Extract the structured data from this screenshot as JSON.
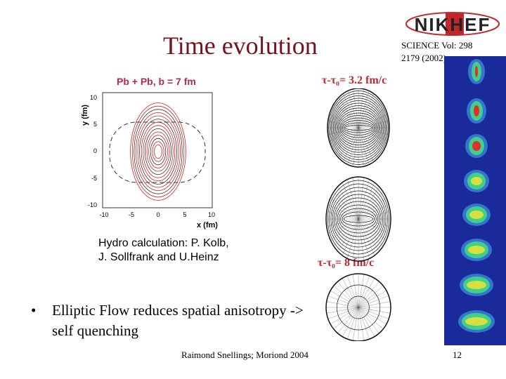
{
  "slide": {
    "title": "Time evolution",
    "reference": "SCIENCE Vol: 298 2179 (2002)",
    "logo_text": "NIKHEF",
    "plot_title": "Pb + Pb, b = 7 fm",
    "y_axis_label": "y (fm)",
    "x_axis_label": "x (fm)",
    "y_ticks": [
      "10",
      "5",
      "0",
      "-5",
      "-10"
    ],
    "x_ticks": [
      "-10",
      "-5",
      "0",
      "5",
      "10"
    ],
    "tau_label_top": "τ-τ₀= 3.2 fm/c",
    "tau_label_bottom": "τ-τ₀= 8 fm/c",
    "caption": "Hydro calculation: P. Kolb, J. Sollfrank and U.Heinz",
    "bullet": "Elliptic Flow reduces spatial anisotropy -> self quenching",
    "bullet_marker": "•",
    "footer": "Raimond Snellings; Moriond 2004",
    "page_number": "12"
  },
  "colors": {
    "title": "#7a1018",
    "contour_red": "#cc2222",
    "strip_blue": "#1a2a9a",
    "logo_red": "#c0282e"
  }
}
